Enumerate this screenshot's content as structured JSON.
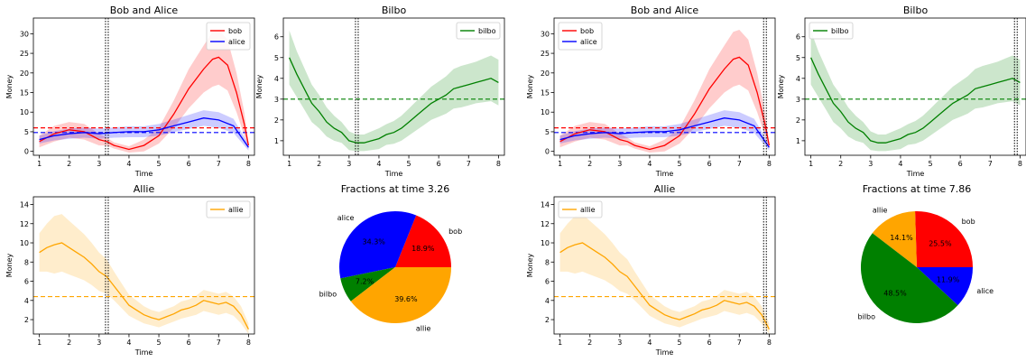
{
  "chart_data": [
    {
      "type": "line",
      "title": "Bob and Alice",
      "xlabel": "Time",
      "ylabel": "Money",
      "xlim": [
        0.8,
        8.2
      ],
      "ylim": [
        -1,
        34
      ],
      "xticks": [
        1,
        2,
        3,
        4,
        5,
        6,
        7,
        8
      ],
      "yticks": [
        0,
        5,
        10,
        15,
        20,
        25,
        30
      ],
      "legend_loc": "top-right",
      "vline": 3.26,
      "series": [
        {
          "name": "bob",
          "color": "#ff0000",
          "x": [
            1,
            1.5,
            2,
            2.5,
            3,
            3.26,
            3.5,
            4,
            4.5,
            5,
            5.5,
            6,
            6.5,
            6.8,
            7,
            7.3,
            7.6,
            7.86,
            8
          ],
          "y": [
            2.5,
            4.5,
            5.5,
            5.0,
            3.0,
            2.5,
            1.5,
            0.5,
            1.5,
            4.0,
            9.5,
            16.0,
            21.0,
            23.5,
            24.0,
            22.0,
            15.0,
            7.0,
            1.5
          ],
          "band": [
            1.5,
            2.0,
            2.0,
            2.0,
            1.5,
            1.0,
            0.8,
            0.8,
            1.5,
            2.0,
            3.5,
            5.0,
            6.0,
            7.0,
            7.0,
            6.5,
            5.0,
            3.0,
            0.8
          ],
          "hline": 6.0
        },
        {
          "name": "alice",
          "color": "#0000ff",
          "x": [
            1,
            1.5,
            2,
            2.5,
            3,
            3.5,
            4,
            4.5,
            5,
            5.5,
            6,
            6.5,
            7,
            7.5,
            8
          ],
          "y": [
            3.0,
            4.0,
            4.5,
            4.8,
            4.5,
            4.8,
            5.0,
            5.0,
            5.5,
            6.5,
            7.5,
            8.5,
            8.0,
            6.5,
            1.0
          ],
          "band": [
            1.0,
            1.2,
            1.3,
            1.3,
            1.3,
            1.3,
            1.4,
            1.4,
            1.5,
            1.6,
            1.8,
            2.0,
            2.0,
            1.8,
            0.8
          ],
          "hline": 4.8
        }
      ]
    },
    {
      "type": "line",
      "title": "Bilbo",
      "xlabel": "Time",
      "ylabel": "Money",
      "xlim": [
        0.8,
        8.2
      ],
      "ylim": [
        0.3,
        6.9
      ],
      "xticks": [
        1,
        2,
        3,
        4,
        5,
        6,
        7,
        8
      ],
      "yticks": [
        1,
        2,
        3,
        4,
        5,
        6
      ],
      "legend_loc": "top-right",
      "vline": 3.26,
      "series": [
        {
          "name": "bilbo",
          "color": "#008000",
          "x": [
            1,
            1.25,
            1.5,
            1.75,
            2,
            2.25,
            2.5,
            2.75,
            3,
            3.25,
            3.5,
            3.75,
            4,
            4.25,
            4.5,
            4.75,
            5,
            5.25,
            5.5,
            5.75,
            6,
            6.25,
            6.5,
            6.75,
            7,
            7.25,
            7.5,
            7.75,
            8
          ],
          "y": [
            5.0,
            4.2,
            3.5,
            2.8,
            2.4,
            1.9,
            1.6,
            1.4,
            1.0,
            0.9,
            0.9,
            1.0,
            1.1,
            1.3,
            1.4,
            1.6,
            1.9,
            2.2,
            2.5,
            2.8,
            3.0,
            3.2,
            3.5,
            3.6,
            3.7,
            3.8,
            3.9,
            4.0,
            3.8
          ],
          "band": [
            1.3,
            1.1,
            1.0,
            0.9,
            0.8,
            0.7,
            0.6,
            0.5,
            0.45,
            0.4,
            0.4,
            0.45,
            0.5,
            0.5,
            0.55,
            0.6,
            0.65,
            0.7,
            0.75,
            0.8,
            0.85,
            0.9,
            0.95,
            1.0,
            1.0,
            1.0,
            1.05,
            1.1,
            1.1
          ],
          "hline": 3.0
        }
      ]
    },
    {
      "type": "line",
      "title": "Bob and Alice",
      "xlabel": "Time",
      "ylabel": "Money",
      "xlim": [
        0.8,
        8.2
      ],
      "ylim": [
        -1,
        34
      ],
      "xticks": [
        1,
        2,
        3,
        4,
        5,
        6,
        7,
        8
      ],
      "yticks": [
        0,
        5,
        10,
        15,
        20,
        25,
        30
      ],
      "legend_loc": "top-left",
      "vline": 7.86,
      "series": [
        {
          "name": "bob",
          "color": "#ff0000",
          "x": [
            1,
            1.5,
            2,
            2.5,
            3,
            3.26,
            3.5,
            4,
            4.5,
            5,
            5.5,
            6,
            6.5,
            6.8,
            7,
            7.3,
            7.6,
            7.86,
            8
          ],
          "y": [
            2.5,
            4.5,
            5.5,
            5.0,
            3.0,
            2.5,
            1.5,
            0.5,
            1.5,
            4.0,
            9.5,
            16.0,
            21.0,
            23.5,
            24.0,
            22.0,
            15.0,
            7.0,
            1.5
          ],
          "band": [
            1.5,
            2.0,
            2.0,
            2.0,
            1.5,
            1.0,
            0.8,
            0.8,
            1.5,
            2.0,
            3.5,
            5.0,
            6.0,
            7.0,
            7.0,
            6.5,
            5.0,
            3.0,
            0.8
          ],
          "hline": 6.0
        },
        {
          "name": "alice",
          "color": "#0000ff",
          "x": [
            1,
            1.5,
            2,
            2.5,
            3,
            3.5,
            4,
            4.5,
            5,
            5.5,
            6,
            6.5,
            7,
            7.5,
            8
          ],
          "y": [
            3.0,
            4.0,
            4.5,
            4.8,
            4.5,
            4.8,
            5.0,
            5.0,
            5.5,
            6.5,
            7.5,
            8.5,
            8.0,
            6.5,
            1.0
          ],
          "band": [
            1.0,
            1.2,
            1.3,
            1.3,
            1.3,
            1.3,
            1.4,
            1.4,
            1.5,
            1.6,
            1.8,
            2.0,
            2.0,
            1.8,
            0.8
          ],
          "hline": 4.8
        }
      ]
    },
    {
      "type": "line",
      "title": "Bilbo",
      "xlabel": "Time",
      "ylabel": "Money",
      "xlim": [
        0.8,
        8.2
      ],
      "ylim": [
        0.3,
        6.9
      ],
      "xticks": [
        1,
        2,
        3,
        4,
        5,
        6,
        7,
        8
      ],
      "yticks": [
        1,
        2,
        3,
        4,
        5,
        6
      ],
      "legend_loc": "top-left",
      "vline": 7.86,
      "series": [
        {
          "name": "bilbo",
          "color": "#008000",
          "x": [
            1,
            1.25,
            1.5,
            1.75,
            2,
            2.25,
            2.5,
            2.75,
            3,
            3.25,
            3.5,
            3.75,
            4,
            4.25,
            4.5,
            4.75,
            5,
            5.25,
            5.5,
            5.75,
            6,
            6.25,
            6.5,
            6.75,
            7,
            7.25,
            7.5,
            7.75,
            8
          ],
          "y": [
            5.0,
            4.2,
            3.5,
            2.8,
            2.4,
            1.9,
            1.6,
            1.4,
            1.0,
            0.9,
            0.9,
            1.0,
            1.1,
            1.3,
            1.4,
            1.6,
            1.9,
            2.2,
            2.5,
            2.8,
            3.0,
            3.2,
            3.5,
            3.6,
            3.7,
            3.8,
            3.9,
            4.0,
            3.8
          ],
          "band": [
            1.3,
            1.1,
            1.0,
            0.9,
            0.8,
            0.7,
            0.6,
            0.5,
            0.45,
            0.4,
            0.4,
            0.45,
            0.5,
            0.5,
            0.55,
            0.6,
            0.65,
            0.7,
            0.75,
            0.8,
            0.85,
            0.9,
            0.95,
            1.0,
            1.0,
            1.0,
            1.05,
            1.1,
            1.1
          ],
          "hline": 3.0
        }
      ]
    },
    {
      "type": "line",
      "title": "Allie",
      "xlabel": "Time",
      "ylabel": "Money",
      "xlim": [
        0.8,
        8.2
      ],
      "ylim": [
        0.5,
        14.8
      ],
      "xticks": [
        1,
        2,
        3,
        4,
        5,
        6,
        7,
        8
      ],
      "yticks": [
        2,
        4,
        6,
        8,
        10,
        12,
        14
      ],
      "legend_loc": "top-right",
      "vline": 3.26,
      "series": [
        {
          "name": "allie",
          "color": "#ffa500",
          "x": [
            1,
            1.25,
            1.5,
            1.75,
            2,
            2.25,
            2.5,
            2.75,
            3,
            3.25,
            3.5,
            3.75,
            4,
            4.25,
            4.5,
            4.75,
            5,
            5.25,
            5.5,
            5.75,
            6,
            6.25,
            6.5,
            6.75,
            7,
            7.25,
            7.5,
            7.75,
            8
          ],
          "y": [
            9.0,
            9.5,
            9.8,
            10.0,
            9.5,
            9.0,
            8.5,
            7.8,
            7.0,
            6.5,
            5.5,
            4.5,
            3.5,
            3.0,
            2.5,
            2.2,
            2.0,
            2.3,
            2.6,
            3.0,
            3.2,
            3.5,
            4.0,
            3.8,
            3.6,
            3.8,
            3.4,
            2.5,
            1.0
          ],
          "band": [
            2.0,
            2.5,
            3.0,
            3.0,
            2.8,
            2.6,
            2.4,
            2.2,
            2.0,
            1.8,
            1.5,
            1.3,
            1.1,
            1.0,
            0.9,
            0.8,
            0.8,
            0.8,
            0.8,
            0.9,
            0.9,
            1.0,
            1.1,
            1.1,
            1.1,
            1.1,
            1.0,
            0.9,
            0.6
          ],
          "hline": 4.4
        }
      ]
    },
    {
      "type": "pie",
      "title": "Fractions at time 3.26",
      "labels": [
        "bob",
        "alice",
        "bilbo",
        "allie"
      ],
      "values": [
        18.9,
        34.3,
        7.2,
        39.6
      ],
      "pct_labels": [
        "18.9%",
        "34.3%",
        "7.2%",
        "39.6%"
      ],
      "colors": [
        "#ff0000",
        "#0000ff",
        "#008000",
        "#ffa500"
      ]
    },
    {
      "type": "line",
      "title": "Allie",
      "xlabel": "Time",
      "ylabel": "Money",
      "xlim": [
        0.8,
        8.2
      ],
      "ylim": [
        0.5,
        14.8
      ],
      "xticks": [
        1,
        2,
        3,
        4,
        5,
        6,
        7,
        8
      ],
      "yticks": [
        2,
        4,
        6,
        8,
        10,
        12,
        14
      ],
      "legend_loc": "top-left",
      "vline": 7.86,
      "series": [
        {
          "name": "allie",
          "color": "#ffa500",
          "x": [
            1,
            1.25,
            1.5,
            1.75,
            2,
            2.25,
            2.5,
            2.75,
            3,
            3.25,
            3.5,
            3.75,
            4,
            4.25,
            4.5,
            4.75,
            5,
            5.25,
            5.5,
            5.75,
            6,
            6.25,
            6.5,
            6.75,
            7,
            7.25,
            7.5,
            7.75,
            8
          ],
          "y": [
            9.0,
            9.5,
            9.8,
            10.0,
            9.5,
            9.0,
            8.5,
            7.8,
            7.0,
            6.5,
            5.5,
            4.5,
            3.5,
            3.0,
            2.5,
            2.2,
            2.0,
            2.3,
            2.6,
            3.0,
            3.2,
            3.5,
            4.0,
            3.8,
            3.6,
            3.8,
            3.4,
            2.5,
            1.0
          ],
          "band": [
            2.0,
            2.5,
            3.0,
            3.0,
            2.8,
            2.6,
            2.4,
            2.2,
            2.0,
            1.8,
            1.5,
            1.3,
            1.1,
            1.0,
            0.9,
            0.8,
            0.8,
            0.8,
            0.8,
            0.9,
            0.9,
            1.0,
            1.1,
            1.1,
            1.1,
            1.1,
            1.0,
            0.9,
            0.6
          ],
          "hline": 4.4
        }
      ]
    },
    {
      "type": "pie",
      "title": "Fractions at time 7.86",
      "labels": [
        "bob",
        "allie",
        "bilbo",
        "alice"
      ],
      "values": [
        25.5,
        14.1,
        48.5,
        11.9
      ],
      "pct_labels": [
        "25.5%",
        "14.1%",
        "48.5%",
        "11.9%"
      ],
      "colors": [
        "#ff0000",
        "#ffa500",
        "#008000",
        "#0000ff"
      ]
    }
  ]
}
